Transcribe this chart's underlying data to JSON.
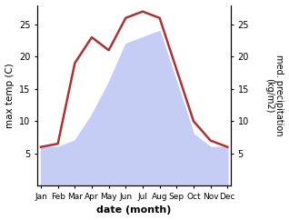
{
  "months": [
    "Jan",
    "Feb",
    "Mar",
    "Apr",
    "May",
    "Jun",
    "Jul",
    "Aug",
    "Sep",
    "Oct",
    "Nov",
    "Dec"
  ],
  "x": [
    1,
    2,
    3,
    4,
    5,
    6,
    7,
    8,
    9,
    10,
    11,
    12
  ],
  "temperature": [
    6,
    6.5,
    19,
    23,
    21,
    26,
    27,
    26,
    18,
    10,
    7,
    6
  ],
  "precipitation": [
    6,
    6,
    7,
    11,
    16,
    22,
    23,
    24,
    16,
    8,
    6,
    6
  ],
  "temp_color": "#b03030",
  "precip_color_fill": "#c5cdf5",
  "temp_ylim": [
    0,
    28
  ],
  "temp_yticks": [
    5,
    10,
    15,
    20,
    25
  ],
  "precip_ylim": [
    0,
    28
  ],
  "precip_yticks": [
    5,
    10,
    15,
    20,
    25
  ],
  "xlabel": "date (month)",
  "ylabel_left": "max temp (C)",
  "ylabel_right": "med. precipitation\n(kg/m2)",
  "background_color": "#ffffff",
  "line_width": 1.8
}
